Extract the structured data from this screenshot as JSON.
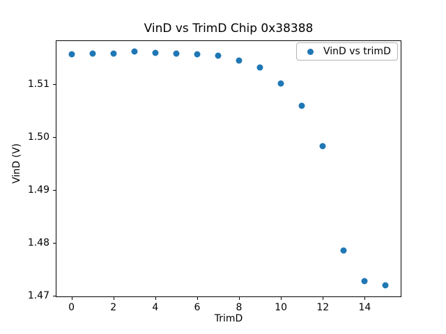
{
  "chart_data": {
    "type": "scatter",
    "title": "VinD vs TrimD Chip 0x38388",
    "xlabel": "TrimD",
    "ylabel": "VinD (V)",
    "legend": [
      "VinD vs trimD"
    ],
    "legend_position": "upper right",
    "marker": "circle",
    "marker_color": "#1f77b4",
    "grid": false,
    "x": [
      0,
      1,
      2,
      3,
      4,
      5,
      6,
      7,
      8,
      9,
      10,
      11,
      12,
      13,
      14,
      15
    ],
    "y": [
      1.5157,
      1.5158,
      1.5158,
      1.5162,
      1.5159,
      1.5158,
      1.5157,
      1.5154,
      1.5145,
      1.5131,
      1.5102,
      1.5059,
      1.4983,
      1.4785,
      1.4727,
      1.472
    ],
    "xlim": [
      -0.75,
      15.75
    ],
    "ylim": [
      1.4697,
      1.5183
    ],
    "xticks": [
      0,
      2,
      4,
      6,
      8,
      10,
      12,
      14
    ],
    "xtick_labels": [
      "0",
      "2",
      "4",
      "6",
      "8",
      "10",
      "12",
      "14"
    ],
    "yticks": [
      1.47,
      1.48,
      1.49,
      1.5,
      1.51
    ],
    "ytick_labels": [
      "1.47",
      "1.48",
      "1.49",
      "1.50",
      "1.51"
    ]
  }
}
